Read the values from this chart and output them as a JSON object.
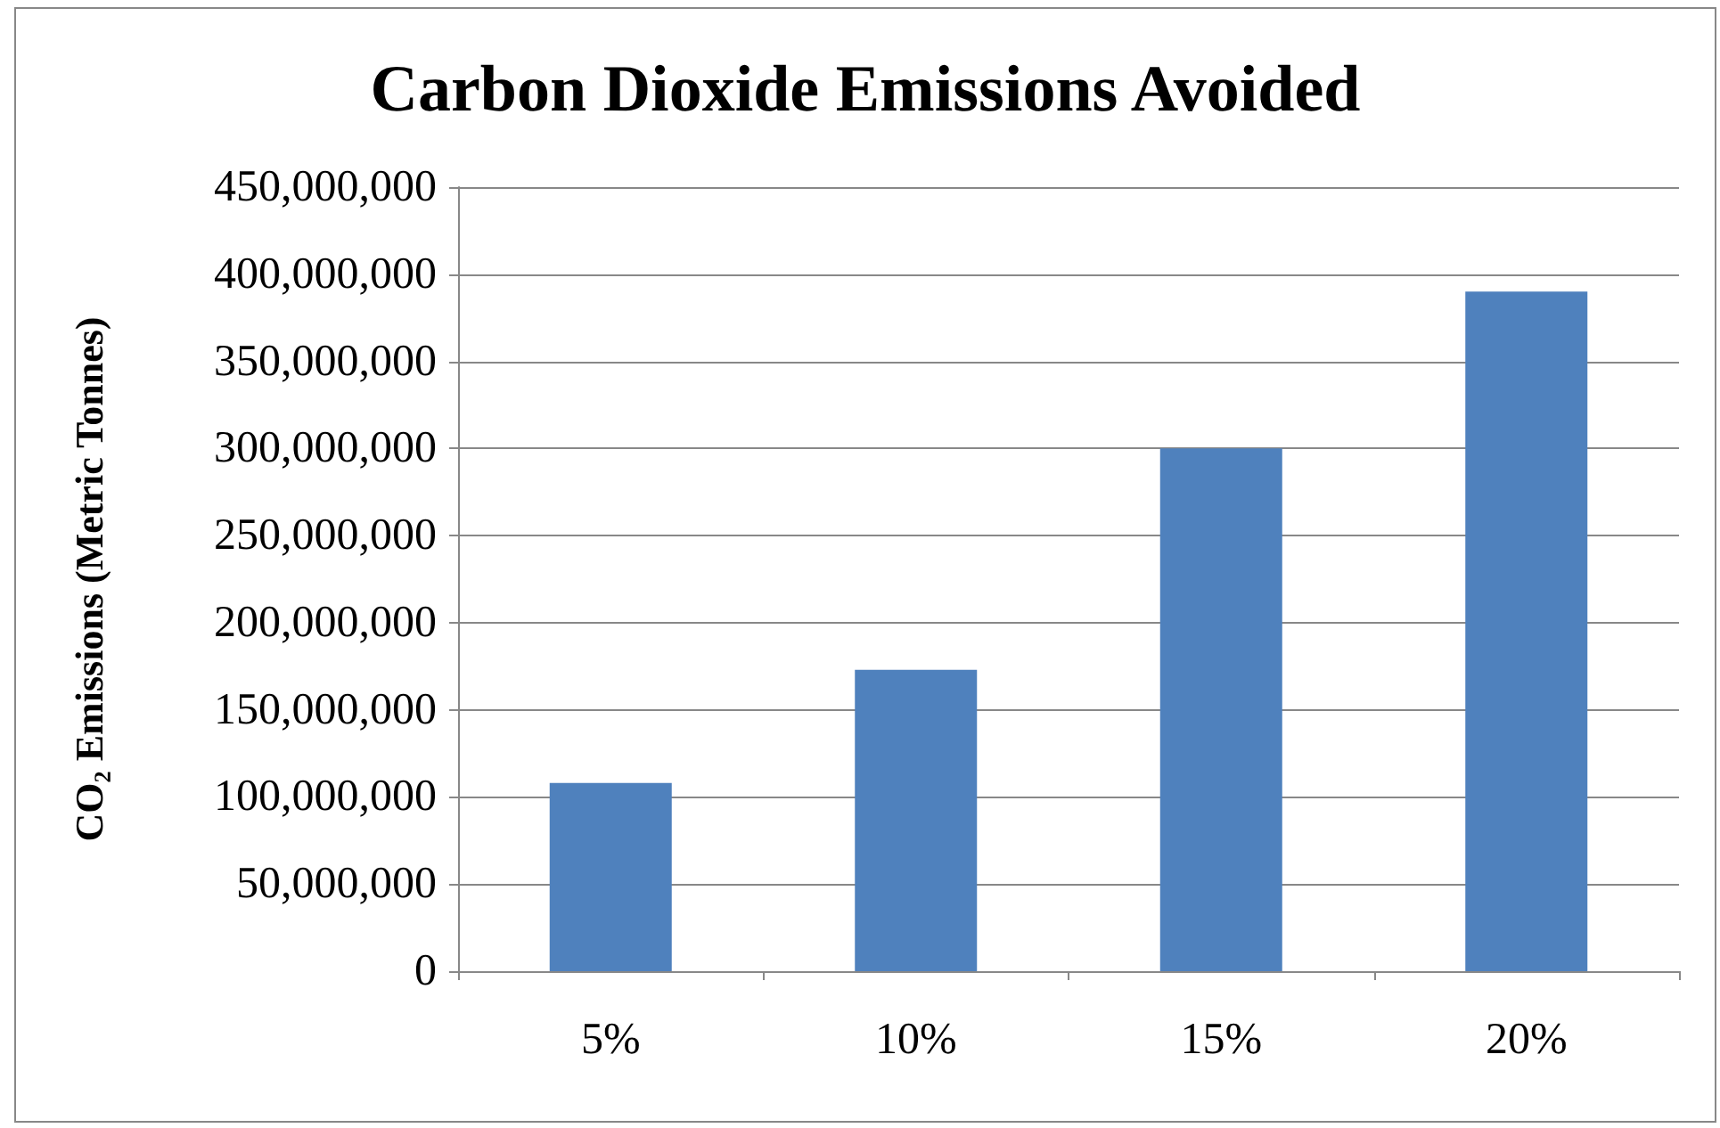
{
  "chart_data": {
    "type": "bar",
    "title": "Carbon Dioxide Emissions Avoided",
    "ylabel": "CO₂ Emissions (Metric Tonnes)",
    "categories": [
      "5%",
      "10%",
      "15%",
      "20%"
    ],
    "values": [
      108000000,
      173000000,
      300000000,
      390000000
    ],
    "color": "#4f81bd",
    "ylim": [
      0,
      450000000
    ],
    "yticks": [
      0,
      {
        "value": 50000000,
        "label": "50,000,000"
      },
      {
        "value": 100000000,
        "label": "100,000,000"
      },
      {
        "value": 150000000,
        "label": "150,000,000"
      },
      {
        "value": 200000000,
        "label": "200,000,000"
      },
      {
        "value": 250000000,
        "label": "250,000,000"
      },
      {
        "value": 300000000,
        "label": "300,000,000"
      },
      {
        "value": 350000000,
        "label": "350,000,000"
      },
      {
        "value": 400000000,
        "label": "400,000,000"
      },
      {
        "value": 450000000,
        "label": "450,000,000"
      }
    ],
    "grid": "y"
  }
}
